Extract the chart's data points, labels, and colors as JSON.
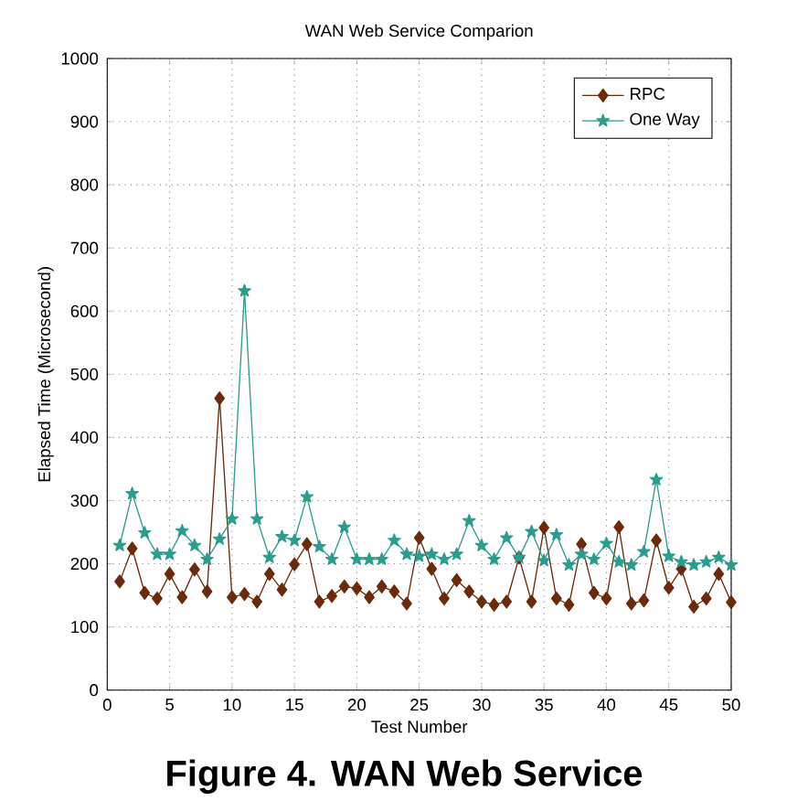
{
  "chart_data": {
    "type": "line",
    "title": "WAN Web Service Comparion",
    "xlabel": "Test Number",
    "ylabel": "Elapsed Time (Microsecond)",
    "annotations": [
      "Figure 4. WAN Web Service"
    ],
    "x": [
      1,
      2,
      3,
      4,
      5,
      6,
      7,
      8,
      9,
      10,
      11,
      12,
      13,
      14,
      15,
      16,
      17,
      18,
      19,
      20,
      21,
      22,
      23,
      24,
      25,
      26,
      27,
      28,
      29,
      30,
      31,
      32,
      33,
      34,
      35,
      36,
      37,
      38,
      39,
      40,
      41,
      42,
      43,
      44,
      45,
      46,
      47,
      48,
      49,
      50
    ],
    "series": [
      {
        "name": "RPC",
        "color": "#6b2a0a",
        "marker": "diamond",
        "values": [
          172,
          224,
          154,
          145,
          184,
          147,
          191,
          156,
          462,
          147,
          152,
          140,
          184,
          159,
          199,
          231,
          140,
          149,
          164,
          161,
          147,
          164,
          156,
          137,
          241,
          192,
          145,
          174,
          156,
          140,
          135,
          140,
          210,
          140,
          257,
          145,
          135,
          231,
          154,
          145,
          258,
          137,
          142,
          237,
          162,
          192,
          132,
          145,
          184,
          139
        ]
      },
      {
        "name": "One Way",
        "color": "#2a9d8f",
        "marker": "star",
        "values": [
          229,
          311,
          249,
          215,
          215,
          252,
          229,
          207,
          239,
          271,
          632,
          271,
          210,
          243,
          237,
          306,
          227,
          207,
          258,
          207,
          207,
          207,
          237,
          215,
          212,
          215,
          207,
          215,
          268,
          229,
          207,
          241,
          210,
          251,
          205,
          246,
          198,
          215,
          207,
          232,
          203,
          198,
          219,
          333,
          212,
          203,
          198,
          203,
          210,
          198
        ]
      }
    ],
    "xlim": [
      0,
      50
    ],
    "ylim": [
      0,
      1000
    ],
    "xticks": [
      0,
      5,
      10,
      15,
      20,
      25,
      30,
      35,
      40,
      45,
      50
    ],
    "yticks": [
      0,
      100,
      200,
      300,
      400,
      500,
      600,
      700,
      800,
      900,
      1000
    ],
    "grid": true,
    "legend": "top right",
    "line_style": "solid"
  }
}
